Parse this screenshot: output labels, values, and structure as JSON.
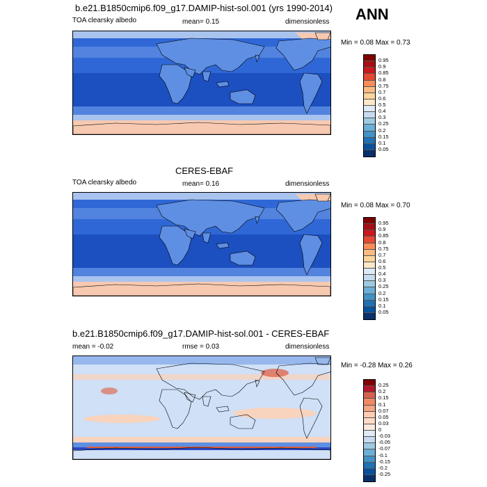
{
  "season": "ANN",
  "panels": [
    {
      "title": "b.e21.B1850cmip6.f09_g17.DAMIP-hist-sol.001 (yrs 1990-2014)",
      "var_label": "TOA clearsky albedo",
      "mean_text": "mean=   0.15",
      "rmse_text": "",
      "units": "dimensionless",
      "minmax": "Min =   0.08 Max =   0.73",
      "colorbar_labels": [
        "0.95",
        "0.9",
        "0.85",
        "0.8",
        "0.75",
        "0.7",
        "0.6",
        "0.5",
        "0.4",
        "0.3",
        "0.25",
        "0.2",
        "0.15",
        "0.1",
        "0.05"
      ],
      "colorbar_colors": [
        "#7f0000",
        "#a50f15",
        "#cb181d",
        "#e34a33",
        "#fc8d59",
        "#fdbb84",
        "#fdd49e",
        "#fee8c8",
        "#deebf7",
        "#c6dbef",
        "#9ecae1",
        "#6baed6",
        "#4292c6",
        "#2171b5",
        "#08519c",
        "#08306b"
      ]
    },
    {
      "title": "CERES-EBAF",
      "var_label": "TOA clearsky albedo",
      "mean_text": "mean=   0.16",
      "rmse_text": "",
      "units": "dimensionless",
      "minmax": "Min =   0.08 Max =   0.70",
      "colorbar_labels": [
        "0.95",
        "0.9",
        "0.85",
        "0.8",
        "0.75",
        "0.7",
        "0.6",
        "0.5",
        "0.4",
        "0.3",
        "0.25",
        "0.2",
        "0.15",
        "0.1",
        "0.05"
      ],
      "colorbar_colors": [
        "#7f0000",
        "#a50f15",
        "#cb181d",
        "#e34a33",
        "#fc8d59",
        "#fdbb84",
        "#fdd49e",
        "#fee8c8",
        "#deebf7",
        "#c6dbef",
        "#9ecae1",
        "#6baed6",
        "#4292c6",
        "#2171b5",
        "#08519c",
        "#08306b"
      ]
    },
    {
      "title": "b.e21.B1850cmip6.f09_g17.DAMIP-hist-sol.001 - CERES-EBAF",
      "var_label": "",
      "mean_text": "mean =  -0.02",
      "rmse_text": "rmse =   0.03",
      "units": "dimensionless",
      "minmax": "Min =  -0.28 Max =   0.26",
      "colorbar_labels": [
        "0.25",
        "0.2",
        "0.15",
        "0.1",
        "0.07",
        "0.05",
        "0.03",
        "0",
        "-0.03",
        "-0.05",
        "-0.07",
        "-0.1",
        "-0.15",
        "-0.2",
        "-0.25"
      ],
      "colorbar_colors": [
        "#7f0000",
        "#b2182b",
        "#d6604d",
        "#ef8a62",
        "#f4a582",
        "#fdcdb3",
        "#fddbc7",
        "#fbe9df",
        "#deebf7",
        "#c6dbef",
        "#9ecae1",
        "#6baed6",
        "#4292c6",
        "#2171b5",
        "#08519c",
        "#08306b"
      ]
    }
  ],
  "map_colors": {
    "deep": "#1c4fbf",
    "mid": "#2f68d6",
    "light": "#5f8fe3",
    "pale": "#a9c3ef",
    "ice": "#f6c9b0",
    "diff_base": "#cfe0f7",
    "diff_pos": "#f8d3bd",
    "diff_neg": "#5f8fe3",
    "diff_strong_pos": "#e05a3a",
    "diff_strong_neg": "#2a48c0"
  }
}
